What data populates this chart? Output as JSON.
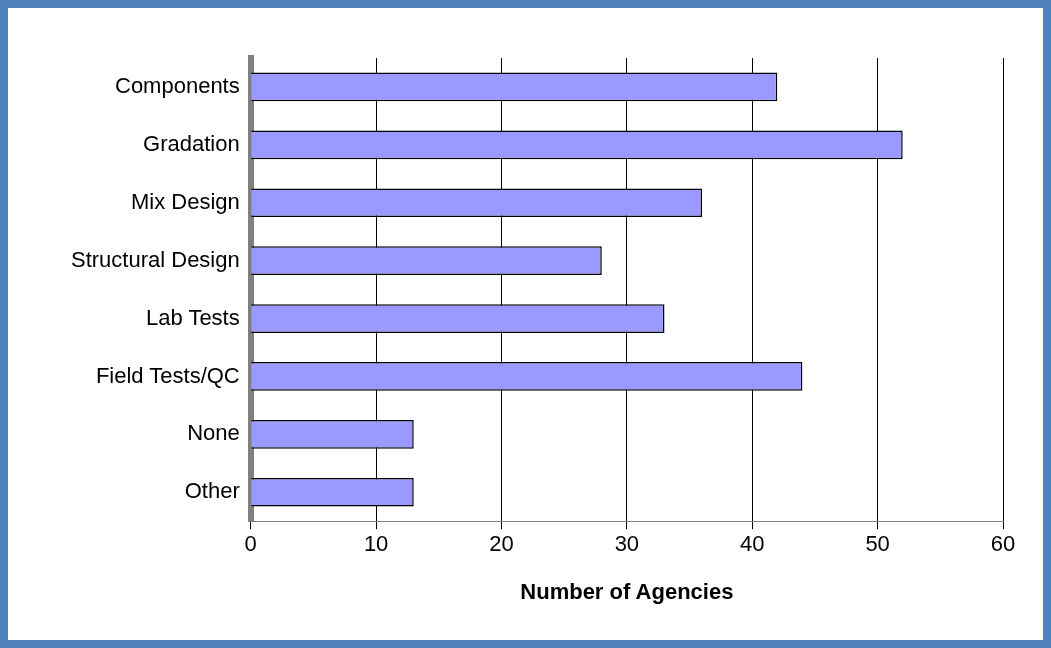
{
  "chart_data": {
    "type": "bar",
    "orientation": "horizontal",
    "xlabel": "Number of Agencies",
    "categories": [
      "Components",
      "Gradation",
      "Mix Design",
      "Structural Design",
      "Lab Tests",
      "Field Tests/QC",
      "None",
      "Other"
    ],
    "values": [
      42,
      52,
      36,
      28,
      33,
      44,
      13,
      13
    ],
    "color": "#9999ff",
    "xlim": [
      0,
      60
    ],
    "xticks": [
      0,
      10,
      20,
      30,
      40,
      50,
      60
    ],
    "grid": "x",
    "legend": false
  }
}
